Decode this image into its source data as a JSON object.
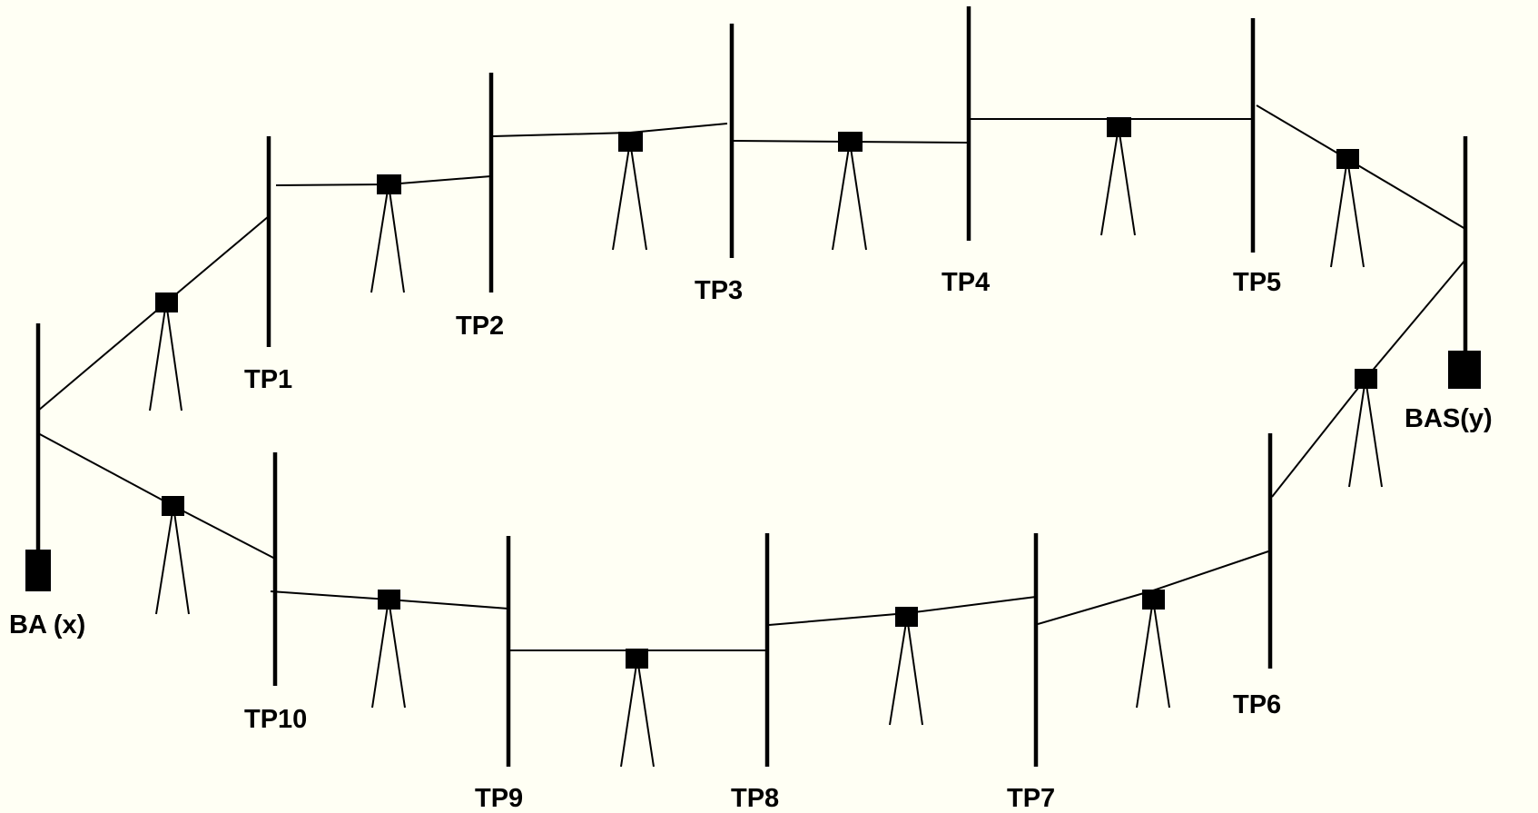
{
  "diagram": {
    "labels": {
      "ba": "BA (x)",
      "bas": "BAS(y)",
      "tp1": "TP1",
      "tp2": "TP2",
      "tp3": "TP3",
      "tp4": "TP4",
      "tp5": "TP5",
      "tp6": "TP6",
      "tp7": "TP7",
      "tp8": "TP8",
      "tp9": "TP9",
      "tp10": "TP10"
    },
    "colors": {
      "background": "#fffff4",
      "ink": "#000000"
    }
  }
}
